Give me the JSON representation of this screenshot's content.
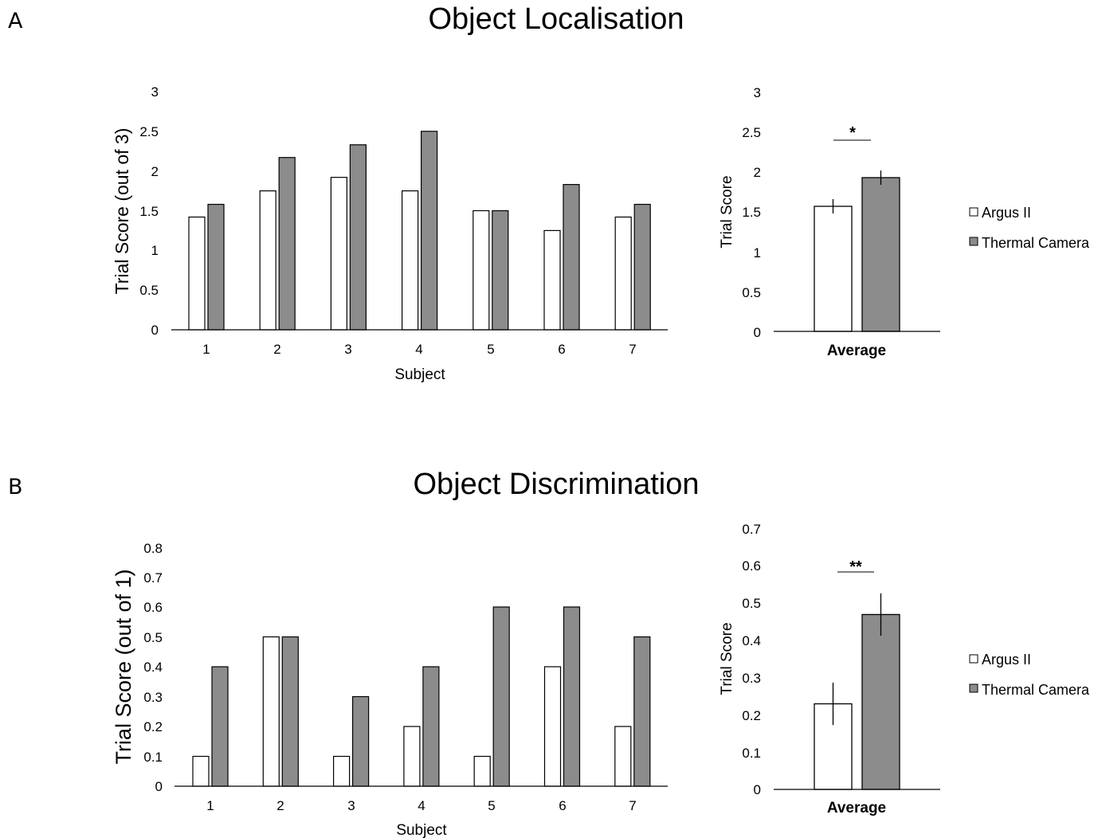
{
  "panels": [
    {
      "letter": "A",
      "title": "Object Localisation",
      "chart_data": [
        {
          "type": "bar",
          "xlabel": "Subject",
          "ylabel": "Trial Score (out of 3)",
          "ylim": [
            0,
            3
          ],
          "yticks": [
            "0",
            "0.5",
            "1",
            "1.5",
            "2",
            "2.5",
            "3"
          ],
          "categories": [
            "1",
            "2",
            "3",
            "4",
            "5",
            "6",
            "7"
          ],
          "series": [
            {
              "name": "Argus II",
              "color": "#ffffff",
              "values": [
                1.42,
                1.75,
                1.92,
                1.75,
                1.5,
                1.25,
                1.42
              ]
            },
            {
              "name": "Thermal Camera",
              "color": "#8c8c8c",
              "values": [
                1.58,
                2.17,
                2.33,
                2.5,
                1.5,
                1.83,
                1.58
              ]
            }
          ],
          "grid": false
        },
        {
          "type": "bar",
          "xlabel": "Average",
          "ylabel": "Trial Score",
          "ylim": [
            0,
            3
          ],
          "yticks": [
            "0",
            "0.5",
            "1",
            "1.5",
            "2",
            "2.5",
            "3"
          ],
          "categories": [
            "Average"
          ],
          "series": [
            {
              "name": "Argus II",
              "color": "#ffffff",
              "values": [
                1.57
              ],
              "error": [
                0.09
              ]
            },
            {
              "name": "Thermal Camera",
              "color": "#8c8c8c",
              "values": [
                1.93
              ],
              "error": [
                0.09
              ]
            }
          ],
          "significance": "*",
          "legend": [
            "Argus II",
            "Thermal Camera"
          ],
          "legend_position": "right",
          "grid": false
        }
      ]
    },
    {
      "letter": "B",
      "title": "Object Discrimination",
      "chart_data": [
        {
          "type": "bar",
          "xlabel": "Subject",
          "ylabel": "Trial Score (out of 1)",
          "ylim": [
            0,
            0.8
          ],
          "yticks": [
            "0",
            "0.1",
            "0.2",
            "0.3",
            "0.4",
            "0.5",
            "0.6",
            "0.7",
            "0.8"
          ],
          "categories": [
            "1",
            "2",
            "3",
            "4",
            "5",
            "6",
            "7"
          ],
          "series": [
            {
              "name": "Argus II",
              "color": "#ffffff",
              "values": [
                0.1,
                0.5,
                0.1,
                0.2,
                0.1,
                0.4,
                0.2
              ]
            },
            {
              "name": "Thermal Camera",
              "color": "#8c8c8c",
              "values": [
                0.4,
                0.5,
                0.3,
                0.4,
                0.6,
                0.6,
                0.5
              ]
            }
          ],
          "grid": false
        },
        {
          "type": "bar",
          "xlabel": "Average",
          "ylabel": "Trial Score",
          "ylim": [
            0,
            0.7
          ],
          "yticks": [
            "0",
            "0.1",
            "0.2",
            "0.3",
            "0.4",
            "0.5",
            "0.6",
            "0.7"
          ],
          "categories": [
            "Average"
          ],
          "series": [
            {
              "name": "Argus II",
              "color": "#ffffff",
              "values": [
                0.23
              ],
              "error": [
                0.057
              ]
            },
            {
              "name": "Thermal Camera",
              "color": "#8c8c8c",
              "values": [
                0.47
              ],
              "error": [
                0.057
              ]
            }
          ],
          "significance": "**",
          "legend": [
            "Argus II",
            "Thermal Camera"
          ],
          "legend_position": "right",
          "grid": false
        }
      ]
    }
  ]
}
